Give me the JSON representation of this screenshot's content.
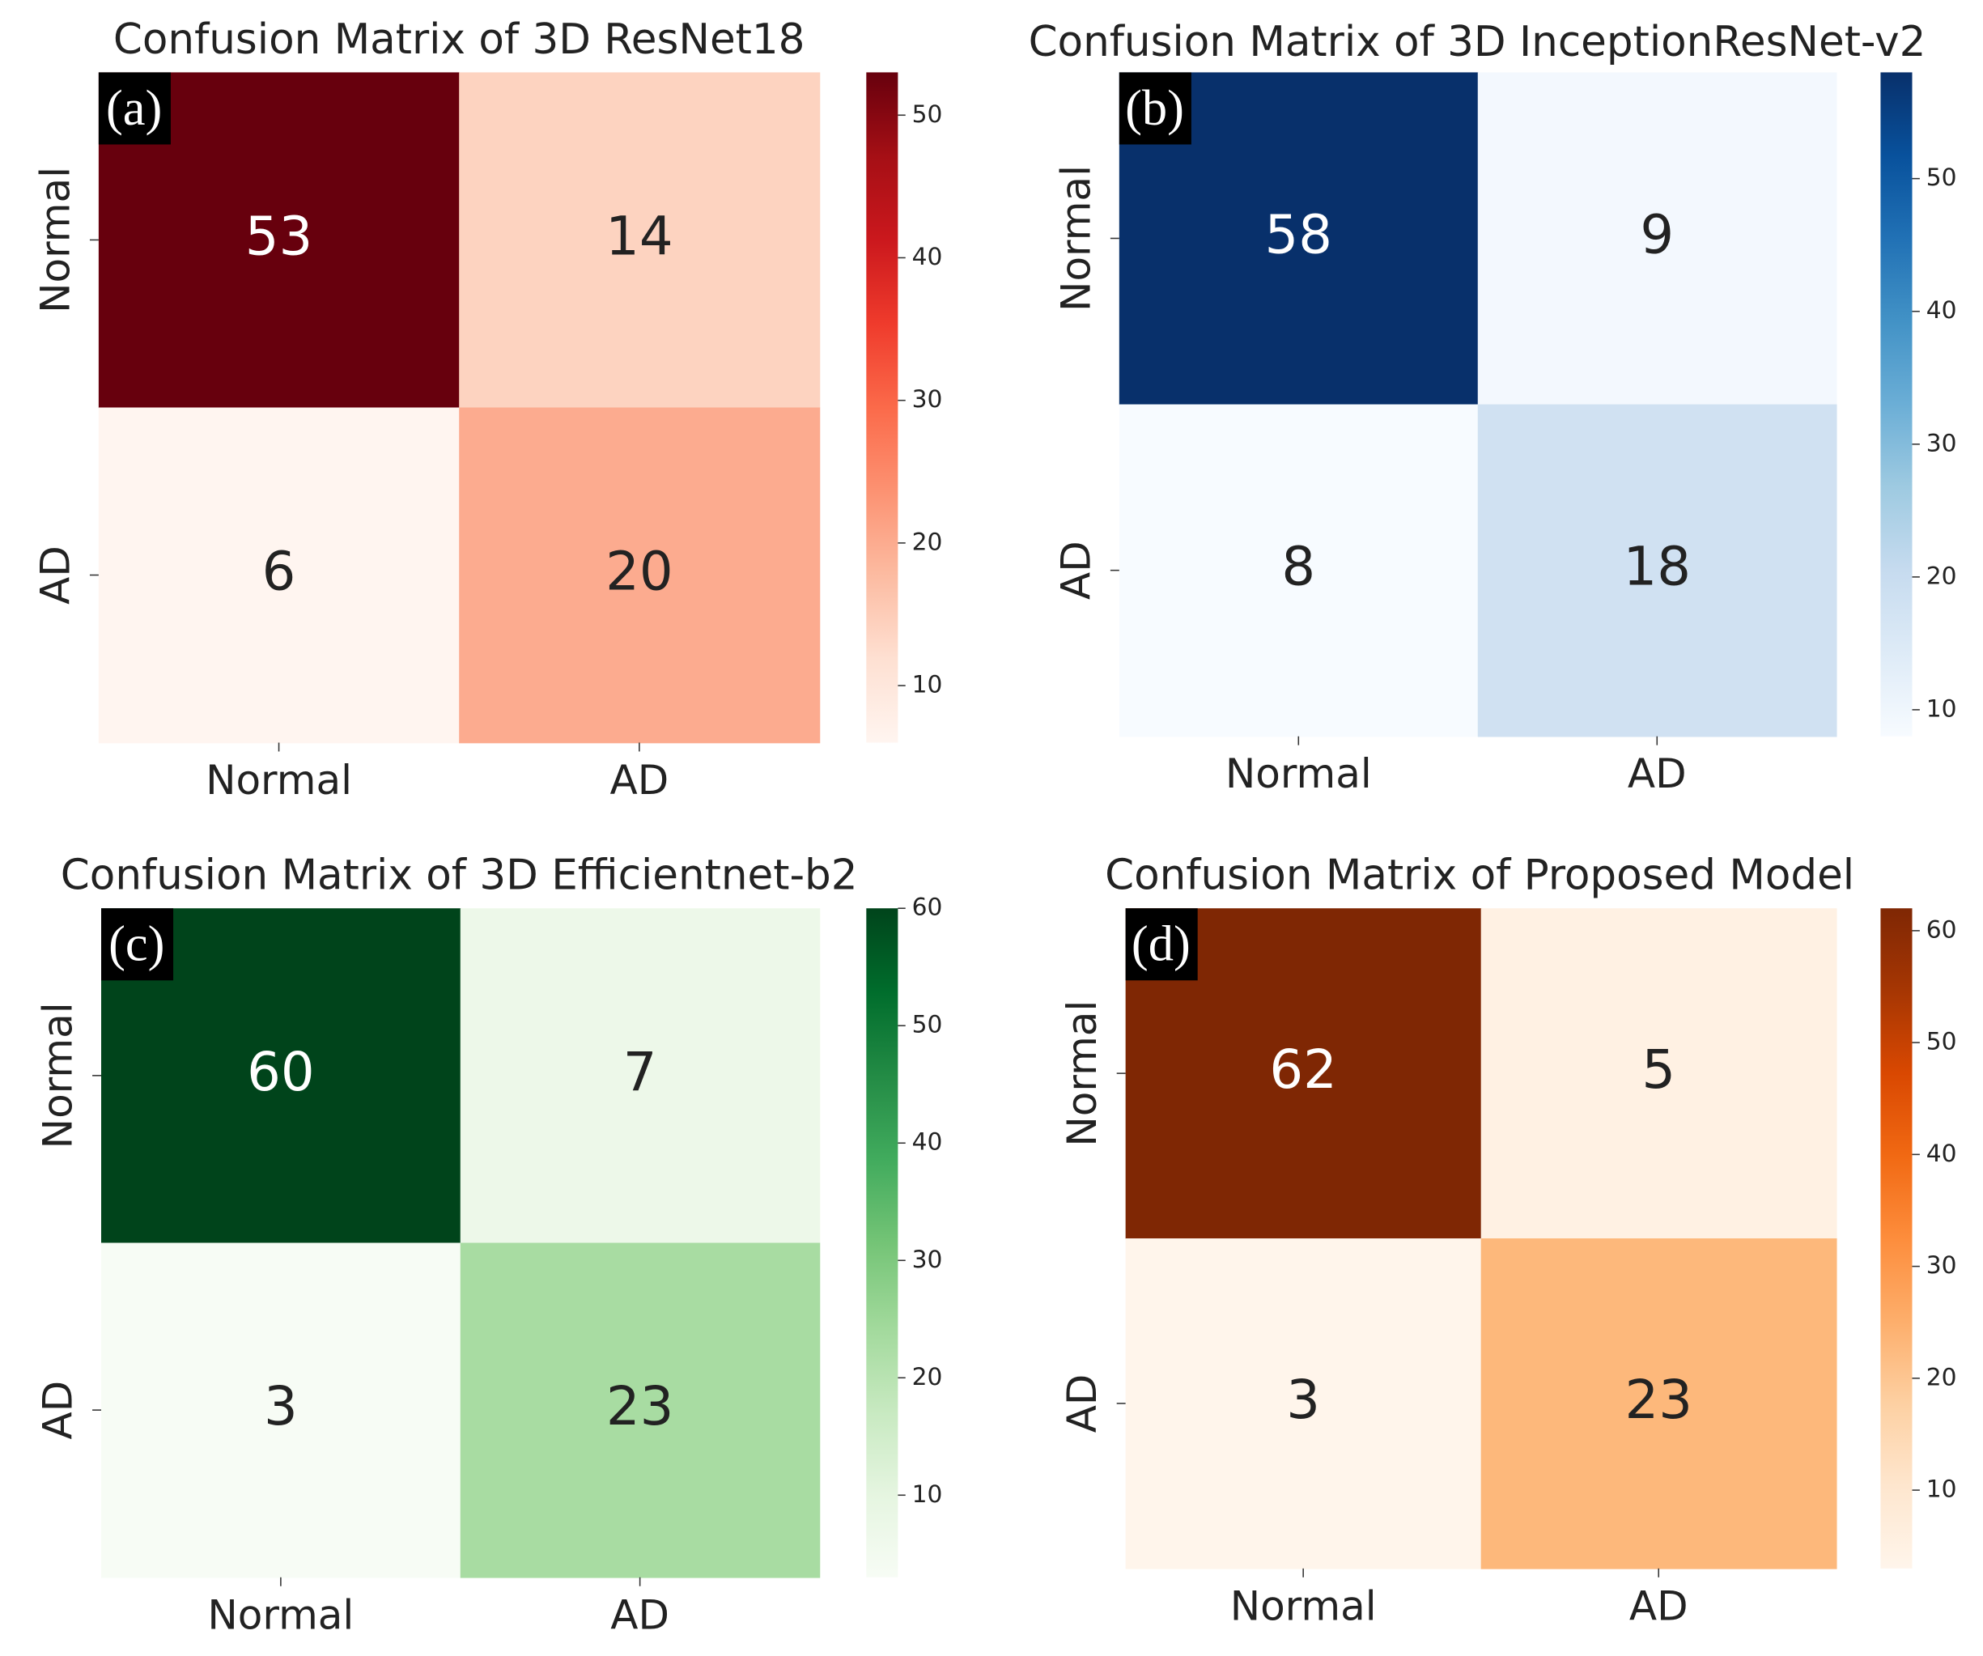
{
  "chart_data": [
    {
      "type": "heatmap",
      "title": "Confusion Matrix of 3D ResNet18",
      "panel_label": "(a)",
      "categories": [
        "Normal",
        "AD"
      ],
      "values": [
        [
          53,
          14
        ],
        [
          6,
          20
        ]
      ],
      "colormap": [
        "#fff5f0",
        "#fee0d2",
        "#fcbba1",
        "#fc9272",
        "#fb6a4a",
        "#ef3b2c",
        "#cb181d",
        "#a50f15",
        "#67000d"
      ],
      "clim": [
        6,
        53
      ],
      "cticks": [
        10,
        20,
        30,
        40,
        50
      ]
    },
    {
      "type": "heatmap",
      "title": "Confusion Matrix of 3D InceptionResNet-v2",
      "panel_label": "(b)",
      "categories": [
        "Normal",
        "AD"
      ],
      "values": [
        [
          58,
          9
        ],
        [
          8,
          18
        ]
      ],
      "colormap": [
        "#f7fbff",
        "#deebf7",
        "#c6dbef",
        "#9ecae1",
        "#6baed6",
        "#4292c6",
        "#2171b5",
        "#08519c",
        "#08306b"
      ],
      "clim": [
        8,
        58
      ],
      "cticks": [
        10,
        20,
        30,
        40,
        50
      ]
    },
    {
      "type": "heatmap",
      "title": "Confusion Matrix of 3D Efficientnet-b2",
      "panel_label": "(c)",
      "categories": [
        "Normal",
        "AD"
      ],
      "values": [
        [
          60,
          7
        ],
        [
          3,
          23
        ]
      ],
      "colormap": [
        "#f7fcf5",
        "#e5f5e0",
        "#c7e9c0",
        "#a1d99b",
        "#74c476",
        "#41ab5d",
        "#238b45",
        "#006d2c",
        "#00441b"
      ],
      "clim": [
        3,
        60
      ],
      "cticks": [
        10,
        20,
        30,
        40,
        50,
        60
      ]
    },
    {
      "type": "heatmap",
      "title": "Confusion Matrix of Proposed Model",
      "panel_label": "(d)",
      "categories": [
        "Normal",
        "AD"
      ],
      "values": [
        [
          62,
          5
        ],
        [
          3,
          23
        ]
      ],
      "colormap": [
        "#fff5eb",
        "#fee6ce",
        "#fdd0a2",
        "#fdae6b",
        "#fd8d3c",
        "#f16913",
        "#d94801",
        "#a63603",
        "#7f2704"
      ],
      "clim": [
        3,
        62
      ],
      "cticks": [
        10,
        20,
        30,
        40,
        50,
        60
      ]
    }
  ]
}
